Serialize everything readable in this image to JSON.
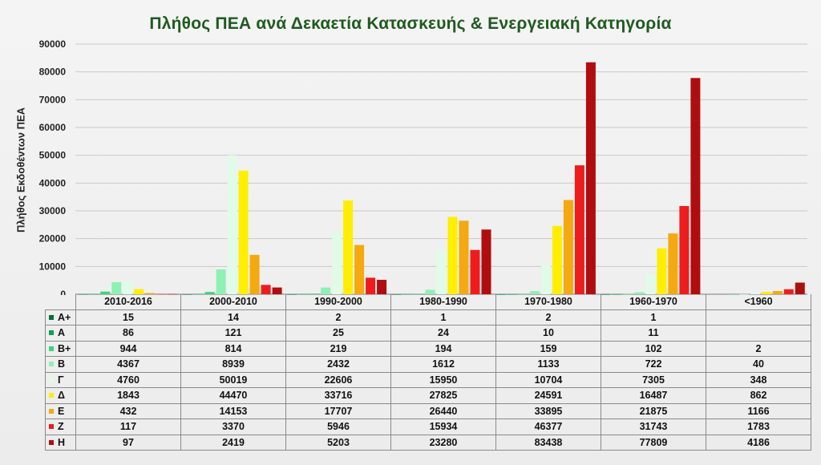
{
  "chart_data": {
    "type": "bar",
    "title": "Πλήθος ΠΕΑ ανά Δεκαετία Κατασκευής & Ενεργειακή Κατηγορία",
    "ylabel": "Πλήθος Εκδοθέντων ΠΕΑ",
    "xlabel": "",
    "ylim": [
      0,
      90000
    ],
    "yticks": [
      "0",
      "10000",
      "20000",
      "30000",
      "40000",
      "50000",
      "60000",
      "70000",
      "80000",
      "90000"
    ],
    "grid": true,
    "legend": "data-table",
    "categories": [
      "2010-2016",
      "2000-2010",
      "1990-2000",
      "1980-1990",
      "1970-1980",
      "1960-1970",
      "<1960"
    ],
    "series": [
      {
        "name": "Α+",
        "color": "#00713a",
        "values": [
          15,
          14,
          2,
          1,
          2,
          1,
          null
        ]
      },
      {
        "name": "Α",
        "color": "#00a651",
        "values": [
          86,
          121,
          25,
          24,
          10,
          11,
          null
        ]
      },
      {
        "name": "Β+",
        "color": "#39d67a",
        "values": [
          944,
          814,
          219,
          194,
          159,
          102,
          2
        ]
      },
      {
        "name": "Β",
        "color": "#8ff0b4",
        "values": [
          4367,
          8939,
          2432,
          1612,
          1133,
          722,
          40
        ]
      },
      {
        "name": "Γ",
        "color": "#e0fbe8",
        "values": [
          4760,
          50019,
          22606,
          15950,
          10704,
          7305,
          348
        ]
      },
      {
        "name": "Δ",
        "color": "#ffee00",
        "values": [
          1843,
          44470,
          33716,
          27825,
          24591,
          16487,
          862
        ]
      },
      {
        "name": "Ε",
        "color": "#f4a910",
        "values": [
          432,
          14153,
          17707,
          26440,
          33895,
          21875,
          1166
        ]
      },
      {
        "name": "Ζ",
        "color": "#ee1c1c",
        "values": [
          117,
          3370,
          5946,
          15934,
          46377,
          31743,
          1783
        ]
      },
      {
        "name": "Η",
        "color": "#b00d10",
        "values": [
          97,
          2419,
          5203,
          23280,
          83438,
          77809,
          4186
        ]
      }
    ]
  }
}
